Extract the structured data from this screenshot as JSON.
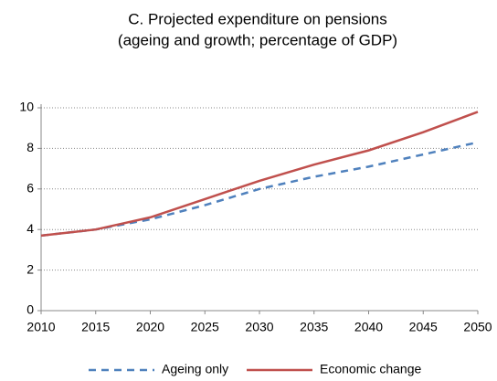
{
  "chart_data": {
    "type": "line",
    "title": "C. Projected expenditure on pensions",
    "subtitle": "(ageing and growth; percentage of GDP)",
    "x": [
      2010,
      2015,
      2020,
      2025,
      2030,
      2035,
      2040,
      2045,
      2050
    ],
    "series": [
      {
        "name": "Ageing only",
        "color": "#4f81bd",
        "dashed": true,
        "values": [
          3.7,
          4.0,
          4.5,
          5.2,
          6.0,
          6.6,
          7.1,
          7.7,
          8.3
        ]
      },
      {
        "name": "Economic change",
        "color": "#c0504d",
        "dashed": false,
        "values": [
          3.7,
          4.0,
          4.6,
          5.5,
          6.4,
          7.2,
          7.9,
          8.8,
          9.8
        ]
      }
    ],
    "xlim": [
      2010,
      2050
    ],
    "xticks": [
      2010,
      2015,
      2020,
      2025,
      2030,
      2035,
      2040,
      2045,
      2050
    ],
    "ylim": [
      0,
      10
    ],
    "yticks": [
      0,
      2,
      4,
      6,
      8,
      10
    ],
    "grid": true,
    "legend": "bottom"
  }
}
